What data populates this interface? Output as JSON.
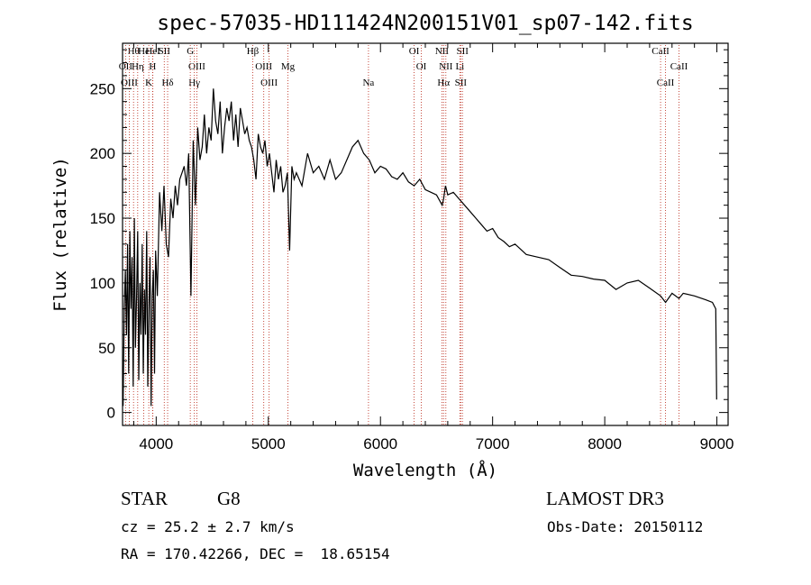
{
  "chart_data": {
    "type": "line",
    "title": "spec-57035-HD111424N200151V01_sp07-142.fits",
    "xlabel": "Wavelength (Å)",
    "ylabel": "Flux (relative)",
    "xlim": [
      3700,
      9100
    ],
    "ylim": [
      -10,
      285
    ],
    "xticks": [
      4000,
      5000,
      6000,
      7000,
      8000,
      9000
    ],
    "yticks": [
      0,
      50,
      100,
      150,
      200,
      250
    ],
    "series": [
      {
        "name": "flux",
        "x": [
          3705,
          3715,
          3725,
          3735,
          3745,
          3755,
          3765,
          3775,
          3785,
          3795,
          3805,
          3815,
          3825,
          3835,
          3845,
          3855,
          3865,
          3875,
          3885,
          3895,
          3905,
          3915,
          3925,
          3935,
          3945,
          3955,
          3965,
          3975,
          3985,
          3995,
          4010,
          4030,
          4050,
          4070,
          4090,
          4110,
          4130,
          4150,
          4170,
          4190,
          4210,
          4230,
          4250,
          4270,
          4290,
          4310,
          4330,
          4350,
          4370,
          4390,
          4410,
          4430,
          4450,
          4470,
          4490,
          4510,
          4530,
          4550,
          4570,
          4590,
          4610,
          4630,
          4650,
          4670,
          4690,
          4710,
          4730,
          4750,
          4770,
          4790,
          4810,
          4830,
          4850,
          4870,
          4890,
          4910,
          4930,
          4950,
          4970,
          4990,
          5010,
          5030,
          5050,
          5070,
          5090,
          5110,
          5130,
          5150,
          5170,
          5190,
          5210,
          5230,
          5250,
          5300,
          5350,
          5400,
          5450,
          5500,
          5550,
          5600,
          5650,
          5700,
          5750,
          5800,
          5850,
          5900,
          5950,
          6000,
          6050,
          6100,
          6150,
          6200,
          6250,
          6300,
          6350,
          6400,
          6450,
          6500,
          6550,
          6563,
          6580,
          6600,
          6650,
          6700,
          6750,
          6800,
          6850,
          6900,
          6950,
          7000,
          7050,
          7100,
          7150,
          7200,
          7300,
          7400,
          7500,
          7600,
          7700,
          7800,
          7900,
          8000,
          8100,
          8200,
          8300,
          8400,
          8498,
          8542,
          8600,
          8662,
          8700,
          8800,
          8900,
          8960,
          8990,
          8998
        ],
        "values": [
          5,
          80,
          110,
          60,
          130,
          30,
          140,
          80,
          120,
          20,
          150,
          50,
          90,
          140,
          25,
          100,
          60,
          130,
          30,
          95,
          60,
          140,
          20,
          80,
          120,
          5,
          90,
          110,
          30,
          125,
          90,
          170,
          140,
          175,
          130,
          120,
          165,
          150,
          175,
          160,
          180,
          185,
          190,
          175,
          200,
          90,
          210,
          160,
          220,
          195,
          205,
          230,
          200,
          220,
          210,
          250,
          225,
          215,
          240,
          200,
          220,
          235,
          225,
          240,
          210,
          230,
          205,
          235,
          225,
          215,
          220,
          210,
          205,
          195,
          180,
          215,
          205,
          200,
          210,
          190,
          200,
          185,
          170,
          195,
          180,
          190,
          170,
          175,
          185,
          125,
          190,
          180,
          185,
          175,
          200,
          185,
          190,
          180,
          195,
          180,
          185,
          195,
          205,
          210,
          200,
          195,
          185,
          190,
          188,
          182,
          180,
          185,
          178,
          175,
          180,
          172,
          170,
          168,
          160,
          165,
          175,
          168,
          170,
          165,
          160,
          155,
          150,
          145,
          140,
          142,
          135,
          132,
          128,
          130,
          122,
          120,
          118,
          112,
          106,
          105,
          103,
          102,
          95,
          100,
          102,
          96,
          90,
          85,
          92,
          88,
          92,
          90,
          87,
          85,
          80,
          10
        ]
      }
    ],
    "lines": [
      {
        "label": "Hθ",
        "wave": 3798
      },
      {
        "label": "OII",
        "wave": 3727
      },
      {
        "label": "OIII",
        "wave": 3760
      },
      {
        "label": "He",
        "wave": 3889
      },
      {
        "label": "Hη",
        "wave": 3835
      },
      {
        "label": "K",
        "wave": 3934
      },
      {
        "label": "HeI",
        "wave": 3970
      },
      {
        "label": "H",
        "wave": 3968
      },
      {
        "label": "Hδ",
        "wave": 4102
      },
      {
        "label": "SII",
        "wave": 4072
      },
      {
        "label": "OIII",
        "wave": 4363
      },
      {
        "label": "Hγ",
        "wave": 4340
      },
      {
        "label": "G",
        "wave": 4304
      },
      {
        "label": "OIII",
        "wave": 4959
      },
      {
        "label": "OIII",
        "wave": 5007
      },
      {
        "label": "Hβ",
        "wave": 4861
      },
      {
        "label": "Mg",
        "wave": 5175
      },
      {
        "label": "Na",
        "wave": 5893
      },
      {
        "label": "OI",
        "wave": 6300
      },
      {
        "label": "OI",
        "wave": 6364
      },
      {
        "label": "Hα",
        "wave": 6563
      },
      {
        "label": "NII",
        "wave": 6548
      },
      {
        "label": "NII",
        "wave": 6583
      },
      {
        "label": "SII",
        "wave": 6716
      },
      {
        "label": "SII",
        "wave": 6731
      },
      {
        "label": "Li",
        "wave": 6708
      },
      {
        "label": "CaII",
        "wave": 8542
      },
      {
        "label": "CaII",
        "wave": 8498
      },
      {
        "label": "CaII",
        "wave": 8662
      }
    ]
  },
  "info": {
    "class_label": "STAR",
    "subclass": "G8",
    "survey": "LAMOST DR3",
    "cz": "cz = 25.2 ± 2.7 km/s",
    "obs_date": "Obs-Date: 20150112",
    "coords": "RA = 170.42266, DEC =  18.65154"
  },
  "colors": {
    "line_marker": "#c0392b",
    "spectrum": "#000000"
  }
}
